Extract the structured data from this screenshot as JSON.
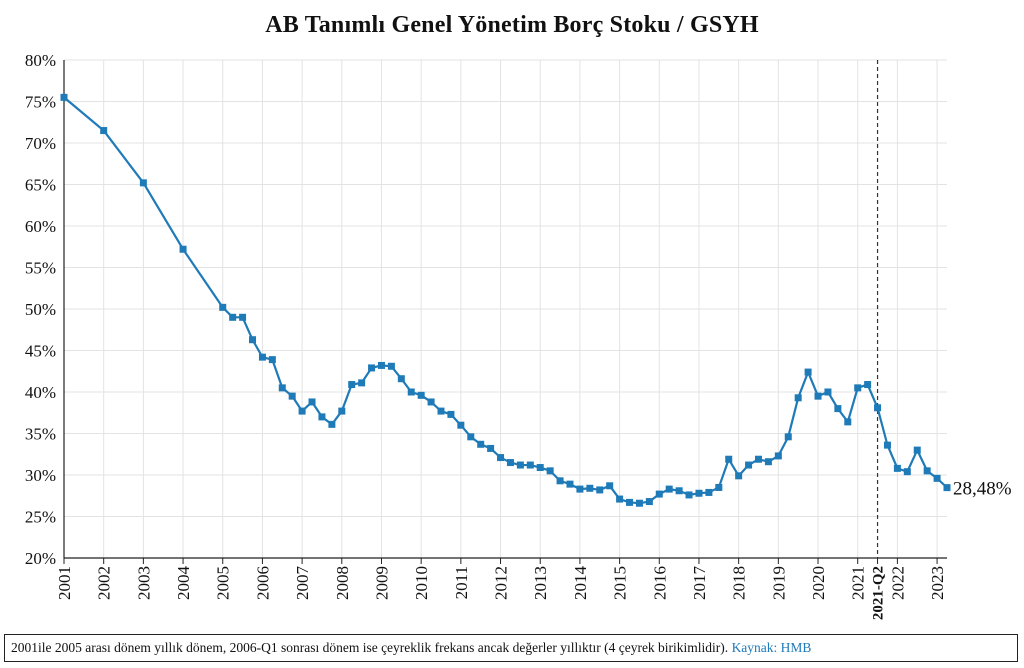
{
  "chart_data": {
    "type": "line",
    "title": "AB Tanımlı Genel Yönetim Borç Stoku / GSYH",
    "xlabel": "",
    "ylabel": "",
    "ylim": [
      20,
      80
    ],
    "yticks": [
      "20%",
      "25%",
      "30%",
      "35%",
      "40%",
      "45%",
      "50%",
      "55%",
      "60%",
      "65%",
      "70%",
      "75%",
      "80%"
    ],
    "xticks": [
      "2001",
      "2002",
      "2003",
      "2004",
      "2005",
      "2006",
      "2007",
      "2008",
      "2009",
      "2010",
      "2011",
      "2012",
      "2013",
      "2014",
      "2015",
      "2016",
      "2017",
      "2018",
      "2019",
      "2020",
      "2021",
      "2022",
      "2023"
    ],
    "grid": true,
    "line_color": "#1f7ab8",
    "series": [
      {
        "x": [
          2001,
          2002,
          2003,
          2004,
          2005,
          2005.25,
          2005.5,
          2005.75,
          2006,
          2006.25,
          2006.5,
          2006.75,
          2007,
          2007.25,
          2007.5,
          2007.75,
          2008,
          2008.25,
          2008.5,
          2008.75,
          2009,
          2009.25,
          2009.5,
          2009.75,
          2010,
          2010.25,
          2010.5,
          2010.75,
          2011,
          2011.25,
          2011.5,
          2011.75,
          2012,
          2012.25,
          2012.5,
          2012.75,
          2013,
          2013.25,
          2013.5,
          2013.75,
          2014,
          2014.25,
          2014.5,
          2014.75,
          2015,
          2015.25,
          2015.5,
          2015.75,
          2016,
          2016.25,
          2016.5,
          2016.75,
          2017,
          2017.25,
          2017.5,
          2017.75,
          2018,
          2018.25,
          2018.5,
          2018.75,
          2019,
          2019.25,
          2019.5,
          2019.75,
          2020,
          2020.25,
          2020.5,
          2020.75,
          2021,
          2021.25,
          2021.5,
          2021.75,
          2022,
          2022.25,
          2022.5,
          2022.75,
          2023,
          2023.25
        ],
        "values": [
          75.5,
          71.5,
          65.2,
          57.2,
          50.2,
          49.0,
          49.0,
          46.3,
          44.2,
          43.9,
          40.5,
          39.5,
          37.7,
          38.8,
          37.0,
          36.1,
          37.7,
          40.9,
          41.1,
          42.9,
          43.2,
          43.1,
          41.6,
          40.0,
          39.6,
          38.8,
          37.7,
          37.3,
          36.0,
          34.6,
          33.7,
          33.2,
          32.1,
          31.5,
          31.2,
          31.2,
          30.9,
          30.5,
          29.3,
          28.9,
          28.3,
          28.4,
          28.2,
          28.7,
          27.1,
          26.7,
          26.6,
          26.8,
          27.7,
          28.3,
          28.1,
          27.6,
          27.8,
          27.9,
          28.5,
          31.9,
          29.9,
          31.2,
          31.9,
          31.6,
          32.3,
          34.6,
          39.3,
          42.4,
          39.5,
          40.0,
          38.0,
          36.4,
          40.5,
          40.9,
          38.1,
          33.6,
          30.8,
          30.4,
          33.0,
          30.5,
          29.6,
          28.48
        ]
      }
    ],
    "end_label": "28,48%",
    "vline": {
      "x": 2021.5,
      "label": "2021-Q2",
      "style": "dashed"
    }
  },
  "footer": {
    "note": "2001ile 2005 arası dönem yıllık dönem, 2006-Q1 sonrası dönem ise çeyreklik frekans ancak değerler yıllıktır (4 çeyrek birikimlidir).",
    "source": "Kaynak: HMB"
  }
}
